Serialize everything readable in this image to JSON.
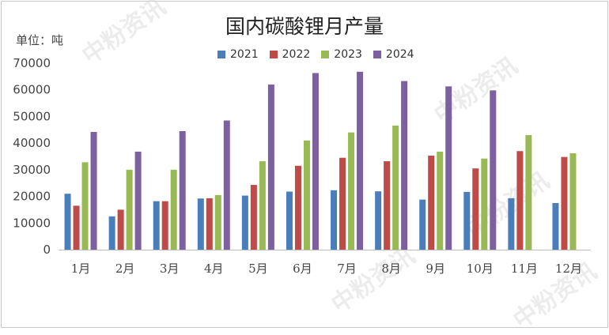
{
  "watermark": "中粉资讯",
  "chart_data": {
    "type": "bar",
    "title": "国内碳酸锂月产量",
    "ylabel": "单位：吨",
    "xlabel": "",
    "ylim": [
      0,
      70000
    ],
    "yticks": [
      0,
      10000,
      20000,
      30000,
      40000,
      50000,
      60000,
      70000
    ],
    "categories": [
      "1月",
      "2月",
      "3月",
      "4月",
      "5月",
      "6月",
      "7月",
      "8月",
      "9月",
      "10月",
      "11月",
      "12月"
    ],
    "legend_position": "top",
    "grid": false,
    "series": [
      {
        "name": "2021",
        "color": "#4a7ebb",
        "values": [
          21000,
          12500,
          18200,
          19200,
          20300,
          21800,
          22300,
          21900,
          18800,
          21700,
          19300,
          17500
        ]
      },
      {
        "name": "2022",
        "color": "#be4b48",
        "values": [
          16500,
          15000,
          18200,
          19300,
          24300,
          31500,
          34500,
          33200,
          35300,
          30500,
          37000,
          34800
        ]
      },
      {
        "name": "2023",
        "color": "#98b954",
        "values": [
          32800,
          30000,
          30000,
          20500,
          33200,
          41000,
          44000,
          46600,
          36800,
          34200,
          43000,
          36200
        ]
      },
      {
        "name": "2024",
        "color": "#7d60a0",
        "values": [
          44200,
          36800,
          44500,
          48500,
          62000,
          66300,
          66800,
          63300,
          61300,
          59800,
          null,
          null
        ]
      }
    ]
  }
}
